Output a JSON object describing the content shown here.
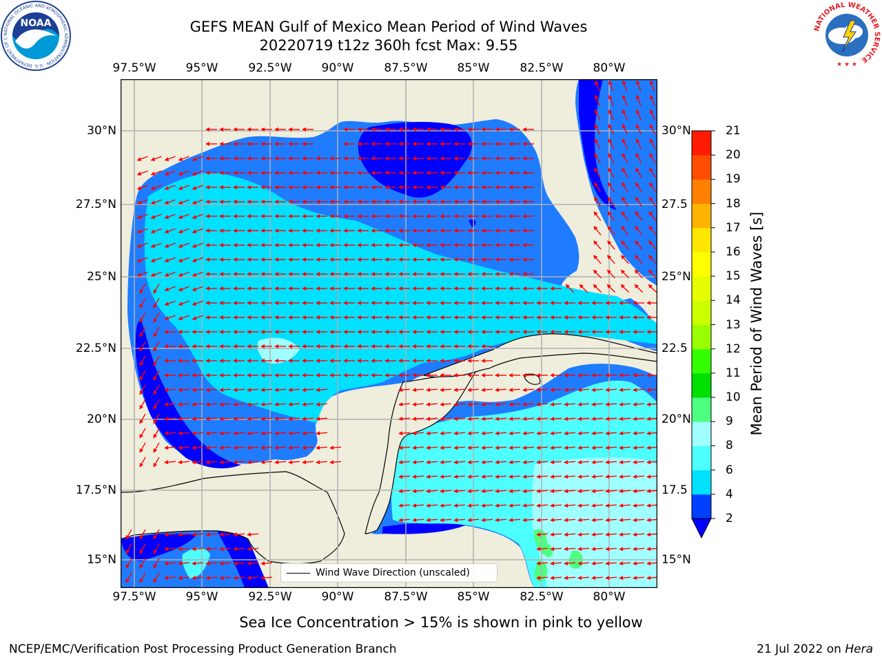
{
  "header": {
    "title_line1": "GEFS MEAN Gulf of Mexico Mean Period of Wind Waves",
    "title_line2": "20220719 t12z 360h fcst   Max: 9.55"
  },
  "map": {
    "lon_labels": [
      "97.5°W",
      "95°W",
      "92.5°W",
      "90°W",
      "87.5°W",
      "85°W",
      "82.5°W",
      "80°W"
    ],
    "lat_labels": [
      "30°N",
      "27.5°N",
      "25°N",
      "22.5°N",
      "20°N",
      "17.5°N",
      "15°N"
    ],
    "lat_labels_right": [
      "30°N",
      "27.5",
      "25°N",
      "22.5",
      "20°N",
      "17.5",
      "15°N"
    ],
    "legend_label": "Wind Wave Direction (unscaled)",
    "arrow_color": "#ff0000",
    "land_color": "#efeddc"
  },
  "colorbar": {
    "title": "Mean Period of Wind Waves [s]",
    "ticks": [
      "2",
      "4",
      "6",
      "8",
      "9",
      "10",
      "11",
      "12",
      "13",
      "14",
      "15",
      "16",
      "17",
      "18",
      "19",
      "20",
      "21"
    ],
    "colors": [
      "#0040ff",
      "#00e0ff",
      "#4dffff",
      "#a0ffff",
      "#4dff80",
      "#00e000",
      "#33ff00",
      "#99ff00",
      "#ccff00",
      "#e6ff00",
      "#ffff00",
      "#ffe600",
      "#ffb300",
      "#ff8000",
      "#ff4d00",
      "#ff1a00"
    ],
    "under_color": "#0000ff"
  },
  "footer": {
    "note": "Sea Ice Concentration > 15% is shown in pink to yellow",
    "credit": "NCEP/EMC/Verification Post Processing Product Generation Branch",
    "date": "21 Jul 2022 on ",
    "machine": "Hera"
  },
  "logos": {
    "noaa_text": "NOAA",
    "noaa_ring": "NATIONAL OCEANIC AND ATMOSPHERIC ADMINISTRATION · U.S. DEPARTMENT OF COMMERCE",
    "nws_ring": "NATIONAL WEATHER SERVICE"
  }
}
